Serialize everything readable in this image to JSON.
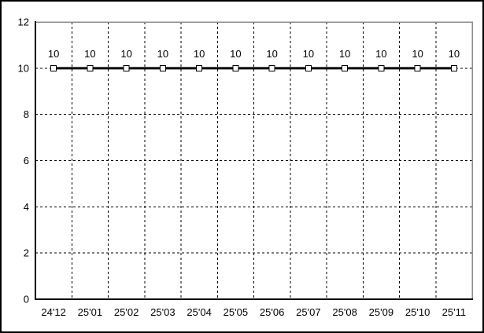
{
  "chart_data": {
    "type": "line",
    "categories": [
      "24'12",
      "25'01",
      "25'02",
      "25'03",
      "25'04",
      "25'05",
      "25'06",
      "25'07",
      "25'08",
      "25'09",
      "25'10",
      "25'11"
    ],
    "values": [
      10,
      10,
      10,
      10,
      10,
      10,
      10,
      10,
      10,
      10,
      10,
      10
    ],
    "data_labels": [
      "10",
      "10",
      "10",
      "10",
      "10",
      "10",
      "10",
      "10",
      "10",
      "10",
      "10",
      "10"
    ],
    "title": "",
    "xlabel": "",
    "ylabel": "",
    "ylim": [
      0,
      12
    ],
    "yticks": [
      0,
      2,
      4,
      6,
      8,
      10,
      12
    ],
    "ytick_labels": [
      "0",
      "2",
      "4",
      "6",
      "8",
      "10",
      "12"
    ],
    "grid": "dashed-both-axes",
    "legend_position": "none",
    "marker_style": "hollow-square",
    "colors": {
      "line": "#000000",
      "grid": "#000000",
      "axis": "#000000",
      "plot_border": "#8c8c8c",
      "background": "#ffffff",
      "text": "#000000",
      "marker_fill": "#ffffff"
    }
  }
}
